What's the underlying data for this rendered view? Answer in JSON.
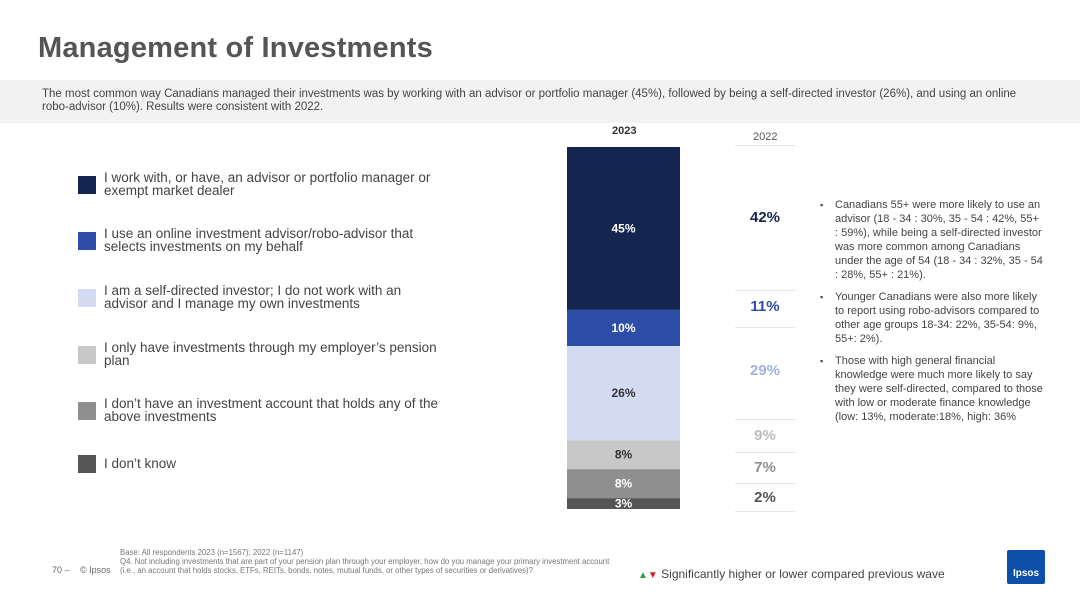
{
  "title": "Management of Investments",
  "subtitle": "The most common way Canadians managed their investments was by working with an advisor or portfolio manager (45%), followed by being a self-directed investor (26%), and using an online robo-advisor (10%). Results were consistent with 2022.",
  "legend": [
    {
      "label": "I work with, or have, an advisor or portfolio manager or exempt market dealer",
      "color": "#14264f"
    },
    {
      "label": "I use an online investment advisor/robo-advisor that selects investments on my behalf",
      "color": "#2d4da8"
    },
    {
      "label": "I am a self-directed investor; I do not work with an advisor and I manage my own investments",
      "color": "#d3dbf2"
    },
    {
      "label": "I only have investments through my employer’s pension plan",
      "color": "#c8c8c8"
    },
    {
      "label": "I don’t have an investment account that holds any of the above investments",
      "color": "#8f8f8f"
    },
    {
      "label": "I don’t know",
      "color": "#555555"
    }
  ],
  "headers": {
    "y2023": "2023",
    "y2022": "2022"
  },
  "chart_data": {
    "type": "bar",
    "stacked": true,
    "categories": [
      "2023"
    ],
    "series": [
      {
        "name": "I work with, or have, an advisor or portfolio manager or exempt market dealer",
        "values": [
          45
        ],
        "label": "45%",
        "color": "#14264f",
        "label_color": "#ffffff"
      },
      {
        "name": "I use an online investment advisor/robo-advisor that selects investments on my behalf",
        "values": [
          10
        ],
        "label": "10%",
        "color": "#2d4da8",
        "label_color": "#ffffff"
      },
      {
        "name": "I am a self-directed investor; I do not work with an advisor and I manage my own investments",
        "values": [
          26
        ],
        "label": "26%",
        "color": "#d3dbf2",
        "label_color": "#333333"
      },
      {
        "name": "I only have investments through my employer’s pension plan",
        "values": [
          8
        ],
        "label": "8%",
        "color": "#c8c8c8",
        "label_color": "#333333"
      },
      {
        "name": "I don’t have an investment account that holds any of the above investments",
        "values": [
          8
        ],
        "label": "8%",
        "color": "#8f8f8f",
        "label_color": "#ffffff"
      },
      {
        "name": "I don’t know",
        "values": [
          3
        ],
        "label": "3%",
        "color": "#555555",
        "label_color": "#ffffff"
      }
    ],
    "comparison_2022": [
      {
        "label": "42%",
        "value": 42,
        "color": "#14264f"
      },
      {
        "label": "11%",
        "value": 11,
        "color": "#2d4da8"
      },
      {
        "label": "29%",
        "value": 29,
        "color": "#a3b2e0"
      },
      {
        "label": "9%",
        "value": 9,
        "color": "#bdbdbd"
      },
      {
        "label": "7%",
        "value": 7,
        "color": "#8f8f8f"
      },
      {
        "label": "2%",
        "value": 2,
        "color": "#555555"
      }
    ]
  },
  "bullets": [
    "Canadians 55+ were more likely to use an advisor (18 - 34 : 30%, 35 - 54 : 42%, 55+ : 59%), while being a self-directed investor was more common among Canadians under the age of 54 (18 - 34 : 32%, 35 - 54 : 28%, 55+ : 21%).",
    "Younger Canadians were also more likely to report using robo-advisors compared to other age groups 18-34: 22%, 35-54: 9%, 55+: 2%).",
    "Those with high general financial knowledge were much more likely to say they were self-directed, compared to those with low or moderate finance knowledge (low: 13%, moderate:18%, high: 36%"
  ],
  "footer": {
    "page_number": "70 –",
    "copyright": "© Ipsos",
    "base": "Base: All respondents 2023 (n=1567); 2022 (n=1147)",
    "question": "Q4. Not including investments that are part of your pension plan through your employer, how do you manage your primary investment account (i.e., an account that holds stocks, ETFs, REITs, bonds, notes, mutual funds, or other types of securities or derivatives)?",
    "significance": "Significantly higher or lower compared previous wave",
    "logo": "Ipsos"
  }
}
